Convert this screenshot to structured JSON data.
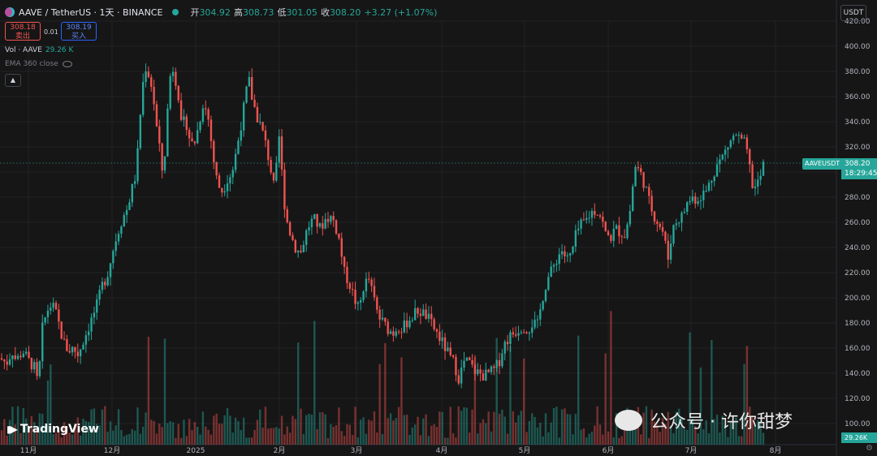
{
  "header": {
    "symbol": "AAVE / TetherUS · 1天 · BINANCE",
    "open_label": "开",
    "open": "304.92",
    "high_label": "高",
    "high": "308.73",
    "low_label": "低",
    "low": "301.05",
    "close_label": "收",
    "close": "308.20",
    "change": "+3.27 (+1.07%)"
  },
  "trade": {
    "sell_price": "308.18",
    "sell_label": "卖出",
    "spread": "0.01",
    "buy_price": "308.19",
    "buy_label": "买入"
  },
  "volume_legend": {
    "label": "Vol · AAVE",
    "value": "29.26 K"
  },
  "ema_legend": {
    "label": "EMA 360 close"
  },
  "currency_unit": "USDT",
  "last_price_tag": {
    "symbol": "AAVEUSDT",
    "price": "308.20",
    "countdown": "18:29:45"
  },
  "volume_tag": "29.26K",
  "branding": "TradingView",
  "watermark": "公众号 · 许你甜梦",
  "colors": {
    "up": "#26a69a",
    "down": "#ef5350",
    "background": "#161616",
    "grid": "#232326"
  },
  "chart_data": {
    "type": "candlestick",
    "symbol": "AAVEUSDT",
    "interval": "1天",
    "y_axis_ticks": [
      100,
      120,
      140,
      160,
      180,
      200,
      220,
      240,
      260,
      280,
      300,
      320,
      340,
      360,
      380,
      400,
      420
    ],
    "ylim": [
      90,
      428
    ],
    "x_axis_labels": [
      "11月",
      "12月",
      "2025",
      "2月",
      "3月",
      "4月",
      "5月",
      "6月",
      "7月",
      "8月"
    ],
    "last_price": 308.2,
    "approx_close_path": [
      [
        0,
        152
      ],
      [
        8,
        148
      ],
      [
        15,
        158
      ],
      [
        20,
        150
      ],
      [
        28,
        158
      ],
      [
        35,
        150
      ],
      [
        42,
        145
      ],
      [
        47,
        130
      ],
      [
        52,
        175
      ],
      [
        58,
        190
      ],
      [
        64,
        195
      ],
      [
        70,
        185
      ],
      [
        78,
        165
      ],
      [
        84,
        158
      ],
      [
        90,
        160
      ],
      [
        96,
        155
      ],
      [
        102,
        165
      ],
      [
        108,
        175
      ],
      [
        114,
        185
      ],
      [
        120,
        195
      ],
      [
        126,
        210
      ],
      [
        132,
        218
      ],
      [
        138,
        235
      ],
      [
        144,
        250
      ],
      [
        150,
        262
      ],
      [
        156,
        270
      ],
      [
        162,
        285
      ],
      [
        168,
        300
      ],
      [
        172,
        340
      ],
      [
        176,
        370
      ],
      [
        180,
        385
      ],
      [
        184,
        375
      ],
      [
        188,
        365
      ],
      [
        192,
        340
      ],
      [
        196,
        320
      ],
      [
        200,
        300
      ],
      [
        204,
        320
      ],
      [
        208,
        370
      ],
      [
        212,
        385
      ],
      [
        216,
        375
      ],
      [
        220,
        360
      ],
      [
        224,
        330
      ],
      [
        228,
        345
      ],
      [
        232,
        330
      ],
      [
        238,
        320
      ],
      [
        244,
        335
      ],
      [
        250,
        355
      ],
      [
        256,
        345
      ],
      [
        260,
        325
      ],
      [
        264,
        305
      ],
      [
        268,
        290
      ],
      [
        274,
        285
      ],
      [
        280,
        295
      ],
      [
        286,
        300
      ],
      [
        292,
        320
      ],
      [
        296,
        335
      ],
      [
        300,
        350
      ],
      [
        306,
        375
      ],
      [
        310,
        360
      ],
      [
        316,
        345
      ],
      [
        322,
        335
      ],
      [
        328,
        320
      ],
      [
        334,
        300
      ],
      [
        338,
        285
      ],
      [
        344,
        330
      ],
      [
        348,
        290
      ],
      [
        352,
        265
      ],
      [
        358,
        250
      ],
      [
        364,
        240
      ],
      [
        370,
        235
      ],
      [
        376,
        250
      ],
      [
        382,
        260
      ],
      [
        388,
        262
      ],
      [
        394,
        255
      ],
      [
        400,
        262
      ],
      [
        406,
        265
      ],
      [
        412,
        260
      ],
      [
        418,
        245
      ],
      [
        424,
        220
      ],
      [
        430,
        212
      ],
      [
        436,
        200
      ],
      [
        442,
        190
      ],
      [
        448,
        210
      ],
      [
        454,
        215
      ],
      [
        460,
        200
      ],
      [
        466,
        185
      ],
      [
        472,
        180
      ],
      [
        478,
        175
      ],
      [
        484,
        172
      ],
      [
        490,
        178
      ],
      [
        496,
        175
      ],
      [
        502,
        182
      ],
      [
        508,
        185
      ],
      [
        514,
        190
      ],
      [
        520,
        188
      ],
      [
        526,
        185
      ],
      [
        532,
        178
      ],
      [
        538,
        172
      ],
      [
        544,
        165
      ],
      [
        550,
        158
      ],
      [
        556,
        150
      ],
      [
        560,
        148
      ],
      [
        564,
        135
      ],
      [
        568,
        142
      ],
      [
        572,
        150
      ],
      [
        578,
        148
      ],
      [
        584,
        142
      ],
      [
        590,
        140
      ],
      [
        596,
        138
      ],
      [
        602,
        140
      ],
      [
        608,
        142
      ],
      [
        614,
        148
      ],
      [
        620,
        162
      ],
      [
        626,
        168
      ],
      [
        632,
        172
      ],
      [
        638,
        175
      ],
      [
        644,
        178
      ],
      [
        650,
        175
      ],
      [
        656,
        180
      ],
      [
        662,
        178
      ],
      [
        668,
        200
      ],
      [
        674,
        215
      ],
      [
        680,
        222
      ],
      [
        686,
        232
      ],
      [
        692,
        238
      ],
      [
        698,
        230
      ],
      [
        704,
        235
      ],
      [
        710,
        252
      ],
      [
        716,
        258
      ],
      [
        722,
        262
      ],
      [
        728,
        268
      ],
      [
        734,
        270
      ],
      [
        740,
        265
      ],
      [
        746,
        250
      ],
      [
        752,
        248
      ],
      [
        758,
        255
      ],
      [
        764,
        252
      ],
      [
        770,
        250
      ],
      [
        776,
        270
      ],
      [
        782,
        305
      ],
      [
        788,
        300
      ],
      [
        794,
        290
      ],
      [
        800,
        275
      ],
      [
        806,
        265
      ],
      [
        812,
        258
      ],
      [
        818,
        250
      ],
      [
        822,
        228
      ],
      [
        828,
        255
      ],
      [
        834,
        262
      ],
      [
        840,
        265
      ],
      [
        846,
        275
      ],
      [
        852,
        280
      ],
      [
        858,
        278
      ],
      [
        864,
        282
      ],
      [
        870,
        285
      ],
      [
        876,
        295
      ],
      [
        882,
        305
      ],
      [
        888,
        310
      ],
      [
        894,
        318
      ],
      [
        900,
        325
      ],
      [
        906,
        330
      ],
      [
        912,
        325
      ],
      [
        918,
        322
      ],
      [
        924,
        300
      ],
      [
        928,
        285
      ],
      [
        932,
        290
      ],
      [
        936,
        295
      ],
      [
        940,
        305
      ],
      [
        942,
        308.2
      ]
    ]
  }
}
